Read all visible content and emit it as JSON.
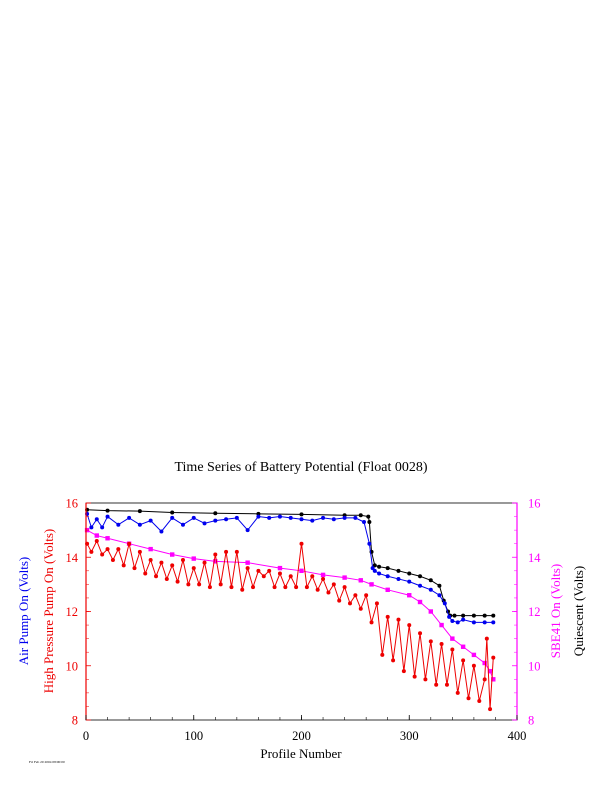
{
  "chart_data": {
    "type": "line",
    "title": "Time Series of Battery Potential (Float 0028)",
    "xlabel": "Profile Number",
    "xlim": [
      0,
      400
    ],
    "x_ticks": [
      "0",
      "100",
      "200",
      "300",
      "400"
    ],
    "y_left": {
      "ylim": [
        8,
        16
      ],
      "ticks": [
        "8",
        "10",
        "12",
        "14",
        "16"
      ],
      "labels": [
        {
          "text": "Air Pump On (Volts)",
          "color": "#0000ee"
        },
        {
          "text": "High Pressure Pump On (Volts)",
          "color": "#ee0000"
        }
      ]
    },
    "y_right": {
      "ylim": [
        8,
        16
      ],
      "ticks": [
        "8",
        "10",
        "12",
        "14",
        "16"
      ],
      "labels": [
        {
          "text": "SBE41 On (Volts)",
          "color": "#ff00ff"
        },
        {
          "text": "Quiescent (Volts)",
          "color": "#000000"
        }
      ]
    },
    "grid": false,
    "series": [
      {
        "color": "#000000",
        "marker": "circle",
        "x": [
          1,
          20,
          50,
          80,
          120,
          160,
          200,
          240,
          255,
          262,
          263,
          265,
          268,
          272,
          280,
          290,
          300,
          310,
          320,
          328,
          332,
          336,
          338,
          342,
          350,
          360,
          370,
          378
        ],
        "y": [
          15.75,
          15.72,
          15.7,
          15.65,
          15.62,
          15.6,
          15.58,
          15.55,
          15.55,
          15.5,
          15.3,
          14.2,
          13.7,
          13.65,
          13.6,
          13.5,
          13.4,
          13.3,
          13.15,
          12.95,
          12.4,
          12.0,
          11.85,
          11.85,
          11.85,
          11.85,
          11.85,
          11.85
        ]
      },
      {
        "color": "#0000ee",
        "marker": "circle",
        "x": [
          1,
          5,
          10,
          15,
          20,
          30,
          40,
          50,
          60,
          70,
          80,
          90,
          100,
          110,
          120,
          130,
          140,
          150,
          160,
          170,
          180,
          190,
          200,
          210,
          220,
          230,
          240,
          250,
          258,
          263,
          266,
          268,
          272,
          280,
          290,
          300,
          310,
          320,
          328,
          333,
          337,
          340,
          345,
          350,
          360,
          370,
          378
        ],
        "y": [
          15.6,
          15.1,
          15.4,
          15.1,
          15.5,
          15.2,
          15.45,
          15.2,
          15.35,
          14.95,
          15.45,
          15.2,
          15.45,
          15.25,
          15.35,
          15.4,
          15.45,
          15.0,
          15.5,
          15.45,
          15.5,
          15.45,
          15.4,
          15.35,
          15.45,
          15.4,
          15.45,
          15.45,
          15.3,
          14.5,
          13.6,
          13.5,
          13.4,
          13.3,
          13.2,
          13.1,
          12.95,
          12.8,
          12.6,
          12.3,
          11.8,
          11.65,
          11.6,
          11.7,
          11.6,
          11.6,
          11.6
        ]
      },
      {
        "color": "#ff00ff",
        "marker": "square",
        "x": [
          1,
          10,
          20,
          40,
          60,
          80,
          100,
          120,
          150,
          180,
          200,
          220,
          240,
          255,
          265,
          280,
          300,
          310,
          320,
          330,
          340,
          350,
          360,
          370,
          375,
          378
        ],
        "y": [
          15.0,
          14.8,
          14.7,
          14.5,
          14.3,
          14.1,
          13.95,
          13.85,
          13.8,
          13.6,
          13.5,
          13.35,
          13.25,
          13.15,
          13.0,
          12.8,
          12.6,
          12.35,
          12.0,
          11.5,
          11.0,
          10.7,
          10.4,
          10.1,
          9.8,
          9.5
        ]
      },
      {
        "color": "#ee0000",
        "marker": "circle",
        "x": [
          1,
          5,
          10,
          15,
          20,
          25,
          30,
          35,
          40,
          45,
          50,
          55,
          60,
          65,
          70,
          75,
          80,
          85,
          90,
          95,
          100,
          105,
          110,
          115,
          120,
          125,
          130,
          135,
          140,
          145,
          150,
          155,
          160,
          165,
          170,
          175,
          180,
          185,
          190,
          195,
          200,
          205,
          210,
          215,
          220,
          225,
          230,
          235,
          240,
          245,
          250,
          255,
          260,
          265,
          270,
          275,
          280,
          285,
          290,
          295,
          300,
          305,
          310,
          315,
          320,
          325,
          330,
          335,
          340,
          345,
          350,
          355,
          360,
          365,
          370,
          372,
          375,
          378
        ],
        "y": [
          14.5,
          14.2,
          14.6,
          14.1,
          14.3,
          13.9,
          14.3,
          13.7,
          14.5,
          13.6,
          14.2,
          13.4,
          13.9,
          13.3,
          13.8,
          13.2,
          13.7,
          13.1,
          13.9,
          13.0,
          13.6,
          13.0,
          13.8,
          12.9,
          14.1,
          13.0,
          14.2,
          12.9,
          14.2,
          12.8,
          13.6,
          12.9,
          13.5,
          13.3,
          13.5,
          12.9,
          13.4,
          12.9,
          13.3,
          12.9,
          14.5,
          12.9,
          13.3,
          12.8,
          13.2,
          12.7,
          13.0,
          12.4,
          12.9,
          12.3,
          12.6,
          12.1,
          12.6,
          11.6,
          12.3,
          10.4,
          11.8,
          10.2,
          11.7,
          9.8,
          11.5,
          9.6,
          11.2,
          9.5,
          10.9,
          9.3,
          10.8,
          9.3,
          10.6,
          9.0,
          10.2,
          8.8,
          10.0,
          8.7,
          9.5,
          11.0,
          8.4,
          10.3
        ]
      }
    ],
    "annotations": [
      {
        "text": "Fri Feb 20 2004 08:00:00",
        "position": "bottom-left"
      }
    ]
  }
}
